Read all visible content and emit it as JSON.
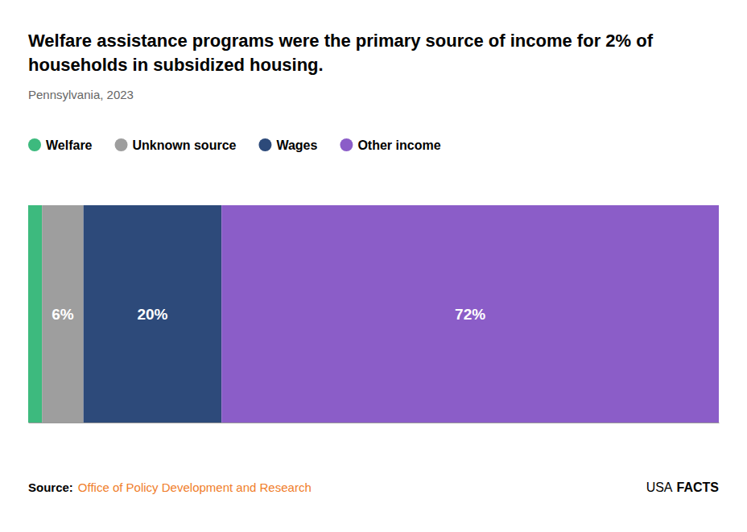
{
  "chart_data": {
    "type": "bar",
    "orientation": "horizontal",
    "stacked": true,
    "title": [
      "Welfare assistance programs were the primary source of income for 2% of",
      "households in subsidized housing."
    ],
    "subtitle": "Pennsylvania, 2023",
    "categories": [
      null
    ],
    "series": [
      {
        "name": "Welfare",
        "color": "#3dba7e",
        "values": [
          2
        ],
        "value_labels": [
          null
        ]
      },
      {
        "name": "Unknown source",
        "color": "#9e9e9e",
        "values": [
          6
        ],
        "value_labels": [
          "6%"
        ]
      },
      {
        "name": "Wages",
        "color": "#2d4a7a",
        "values": [
          20
        ],
        "value_labels": [
          "20%"
        ]
      },
      {
        "name": "Other income",
        "color": "#8b5dc8",
        "values": [
          72
        ],
        "value_labels": [
          "72%"
        ]
      }
    ],
    "xlim": [
      0,
      100
    ],
    "tick_labels": false,
    "grid": false,
    "data_labels": true,
    "legend": "top-left",
    "annotations": [
      {
        "text": "Source:"
      },
      {
        "text": "Office of Policy Development and Research",
        "color": "#f07d2a"
      },
      {
        "text": "USA"
      },
      {
        "text": "FACTS"
      }
    ]
  }
}
